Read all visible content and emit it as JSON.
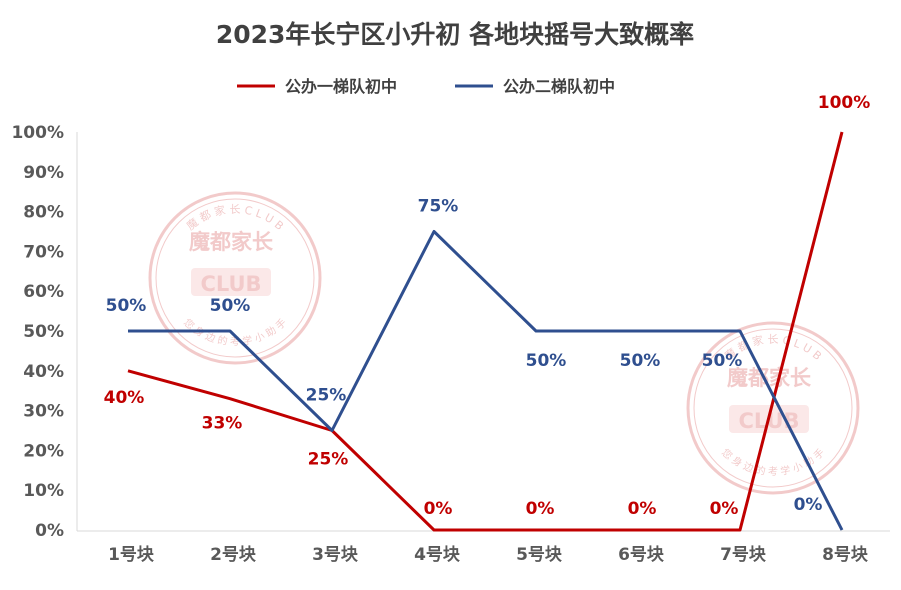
{
  "chart_data": {
    "type": "line",
    "title": "2023年长宁区小升初 各地块摇号大致概率",
    "categories": [
      "1号块",
      "2号块",
      "3号块",
      "4号块",
      "5号块",
      "6号块",
      "7号块",
      "8号块"
    ],
    "y_ticks": [
      "0%",
      "10%",
      "20%",
      "30%",
      "40%",
      "50%",
      "60%",
      "70%",
      "80%",
      "90%",
      "100%"
    ],
    "ylim": [
      0,
      100
    ],
    "grid": false,
    "legend_position": "top-center",
    "series": [
      {
        "name": "公办一梯队初中",
        "color": "#C00000",
        "values": [
          40,
          33,
          25,
          0,
          0,
          0,
          0,
          100
        ],
        "labels": [
          "40%",
          "33%",
          "25%",
          "0%",
          "0%",
          "0%",
          "0%",
          "100%"
        ]
      },
      {
        "name": "公办二梯队初中",
        "color": "#2F4F8F",
        "values": [
          50,
          50,
          25,
          75,
          50,
          50,
          50,
          0
        ],
        "labels": [
          "50%",
          "50%",
          "25%",
          "75%",
          "50%",
          "50%",
          "50%",
          "0%"
        ]
      }
    ]
  },
  "watermark": {
    "brand": "魔都家长",
    "club": "CLUB",
    "ring_top": "魔 都 家 长 C L U B",
    "ring_bottom": "您 身 边 的 考 学 小 助 手",
    "color": "#E8A0A0"
  }
}
